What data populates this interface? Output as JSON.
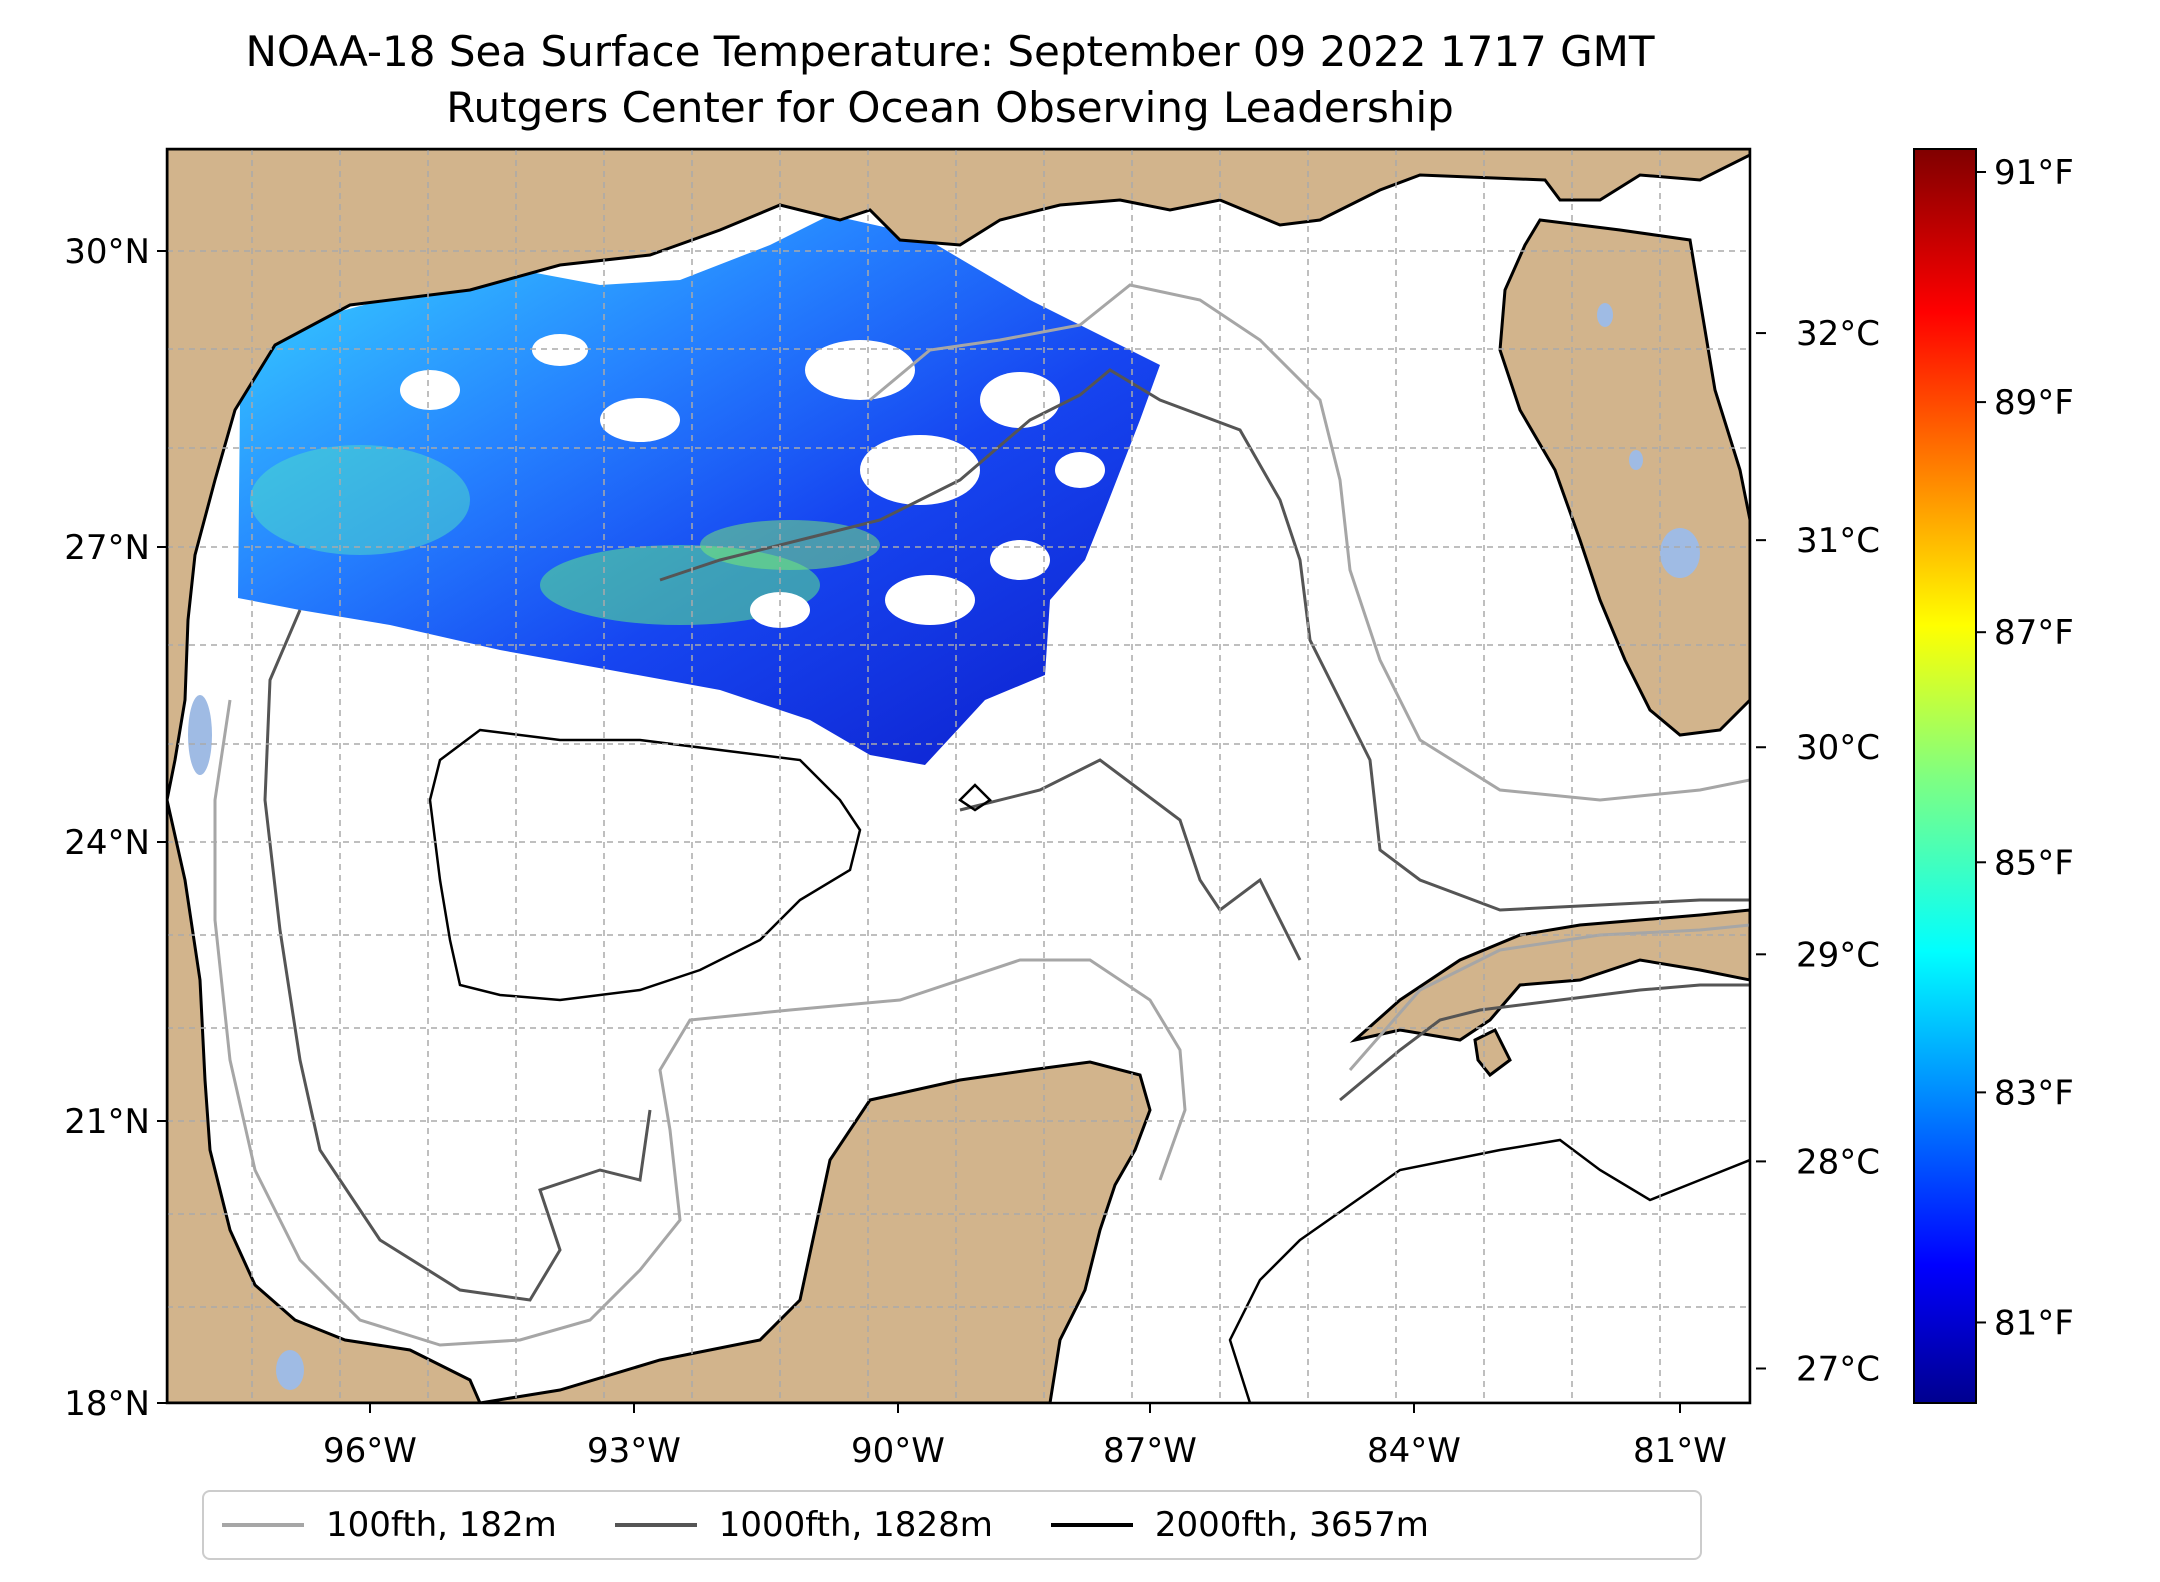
{
  "title": {
    "line1": "NOAA-18 Sea Surface Temperature: September 09 2022 1717 GMT",
    "line2": "Rutgers Center for Ocean Observing Leadership"
  },
  "map": {
    "lat_labels": [
      "30°N",
      "27°N",
      "24°N",
      "21°N",
      "18°N"
    ],
    "lon_labels": [
      "96°W",
      "93°W",
      "90°W",
      "87°W",
      "84°W",
      "81°W"
    ],
    "land_color": "#d2b48c",
    "lake_color": "#9fbbe4",
    "ocean_color": "#ffffff"
  },
  "colorbar": {
    "colormap": "jet",
    "fahrenheit_ticks": [
      "91°F",
      "89°F",
      "87°F",
      "85°F",
      "83°F",
      "81°F"
    ],
    "celsius_ticks": [
      "32°C",
      "31°C",
      "30°C",
      "29°C",
      "28°C",
      "27°C"
    ],
    "range_f": [
      80.3,
      91.2
    ]
  },
  "legend": {
    "items": [
      {
        "label": "100fth, 182m",
        "color": "#a6a6a6"
      },
      {
        "label": "1000fth, 1828m",
        "color": "#555555"
      },
      {
        "label": "2000fth, 3657m",
        "color": "#000000"
      }
    ]
  }
}
